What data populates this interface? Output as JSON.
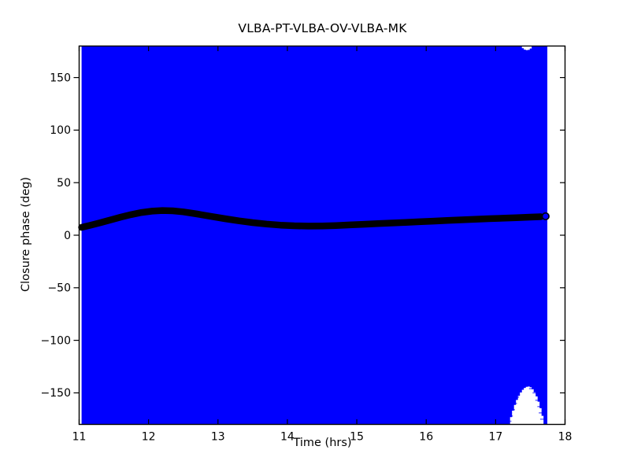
{
  "chart_data": {
    "type": "line",
    "title": "VLBA-PT-VLBA-OV-VLBA-MK",
    "xlabel": "Time (hrs)",
    "ylabel": "Closure phase (deg)",
    "xlim": [
      11,
      18
    ],
    "ylim": [
      -180,
      180
    ],
    "xticks": [
      11,
      12,
      13,
      14,
      15,
      16,
      17,
      18
    ],
    "yticks": [
      150,
      100,
      50,
      0,
      -50,
      -100,
      -150
    ],
    "grid": false,
    "legend": "none",
    "colors": {
      "errorbar_fill": "#0000ff",
      "curve": "#000000",
      "background": "#ffffff",
      "axis": "#000000"
    },
    "errorbar_band": {
      "note": "dense blue error bars saturate the full phase range",
      "t_start": 11.035,
      "t_end": 17.745,
      "v_min": -180,
      "v_max": 180
    },
    "coverage_gaps": [
      {
        "edge": "bottom",
        "edge_value": -180,
        "t_left": 17.18,
        "t_right": 17.69,
        "apex_t": 17.46,
        "apex_value": -144
      },
      {
        "edge": "top",
        "edge_value": 180,
        "t_left": 17.35,
        "t_right": 17.52,
        "apex_t": 17.44,
        "apex_value": 176
      }
    ],
    "error_caps": [
      [
        17.2,
        -177
      ],
      [
        17.22,
        -172
      ],
      [
        17.25,
        -166
      ],
      [
        17.28,
        -160
      ],
      [
        17.31,
        -154
      ],
      [
        17.35,
        -149
      ],
      [
        17.51,
        -146
      ],
      [
        17.56,
        -150
      ],
      [
        17.6,
        -157
      ],
      [
        17.63,
        -163
      ],
      [
        17.65,
        -169
      ],
      [
        17.67,
        -175
      ]
    ],
    "series": [
      {
        "name": "closure phase curve",
        "marker": "filled-circle",
        "color": "#000000",
        "points": [
          [
            11.035,
            7.5
          ],
          [
            11.15,
            9.3
          ],
          [
            11.3,
            11.8
          ],
          [
            11.45,
            14.5
          ],
          [
            11.6,
            17.2
          ],
          [
            11.75,
            19.6
          ],
          [
            11.9,
            21.6
          ],
          [
            12.05,
            22.9
          ],
          [
            12.2,
            23.5
          ],
          [
            12.35,
            23.2
          ],
          [
            12.5,
            22.2
          ],
          [
            12.7,
            20.2
          ],
          [
            12.9,
            17.9
          ],
          [
            13.1,
            15.7
          ],
          [
            13.3,
            13.7
          ],
          [
            13.5,
            12.0
          ],
          [
            13.7,
            10.6
          ],
          [
            13.9,
            9.6
          ],
          [
            14.1,
            9.0
          ],
          [
            14.3,
            8.7
          ],
          [
            14.5,
            8.8
          ],
          [
            14.7,
            9.2
          ],
          [
            14.9,
            9.8
          ],
          [
            15.1,
            10.4
          ],
          [
            15.3,
            11.0
          ],
          [
            15.5,
            11.6
          ],
          [
            15.7,
            12.2
          ],
          [
            15.9,
            12.8
          ],
          [
            16.1,
            13.4
          ],
          [
            16.3,
            14.0
          ],
          [
            16.5,
            14.6
          ],
          [
            16.7,
            15.1
          ],
          [
            16.9,
            15.7
          ],
          [
            17.1,
            16.2
          ],
          [
            17.3,
            16.7
          ],
          [
            17.5,
            17.2
          ],
          [
            17.65,
            17.6
          ]
        ]
      }
    ],
    "end_marker": {
      "t": 17.72,
      "value": 18,
      "fill": "#0000ff",
      "edge": "#000000"
    }
  }
}
